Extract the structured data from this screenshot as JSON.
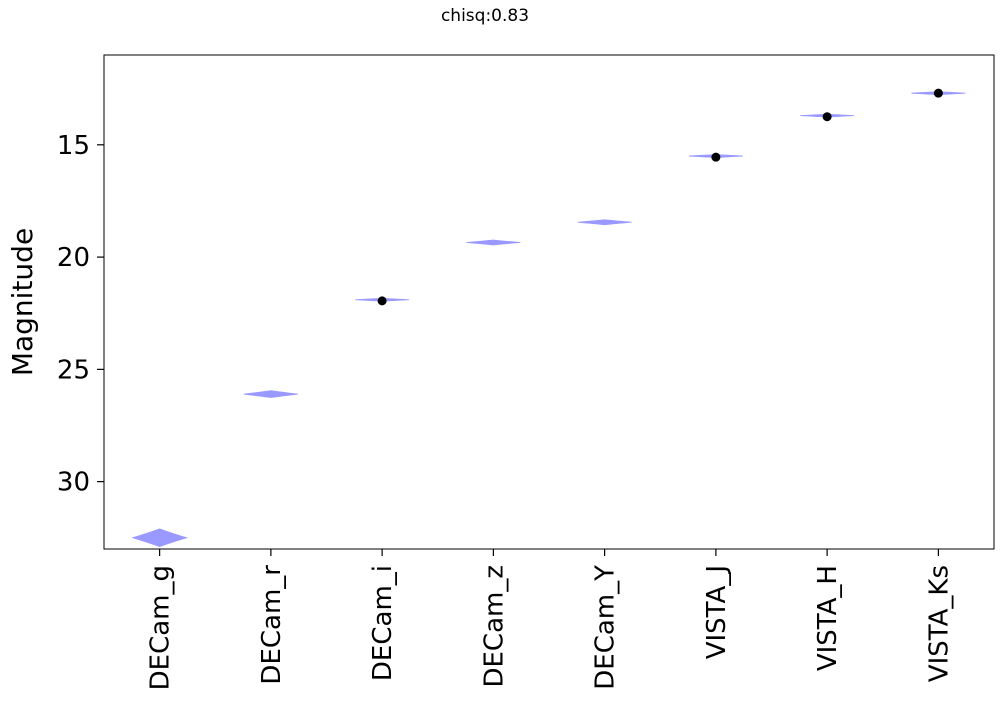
{
  "chart_data": {
    "type": "violin",
    "title": "chisq:0.83",
    "xlabel": "",
    "ylabel": "Magnitude",
    "y_inverted": true,
    "ylim": [
      33.0,
      11.0
    ],
    "yticks": [
      15,
      20,
      25,
      30
    ],
    "grid": false,
    "categories": [
      "DECam_g",
      "DECam_r",
      "DECam_i",
      "DECam_z",
      "DECam_Y",
      "VISTA_J",
      "VISTA_H",
      "VISTA_Ks"
    ],
    "violin_color": "#9999ff",
    "violins": [
      {
        "category": "DECam_g",
        "center": 32.5,
        "spread": 0.18
      },
      {
        "category": "DECam_r",
        "center": 26.1,
        "spread": 0.07
      },
      {
        "category": "DECam_i",
        "center": 21.9,
        "spread": 0.03
      },
      {
        "category": "DECam_z",
        "center": 19.35,
        "spread": 0.05
      },
      {
        "category": "DECam_Y",
        "center": 18.45,
        "spread": 0.05
      },
      {
        "category": "VISTA_J",
        "center": 15.5,
        "spread": 0.03
      },
      {
        "category": "VISTA_H",
        "center": 13.7,
        "spread": 0.03
      },
      {
        "category": "VISTA_Ks",
        "center": 12.7,
        "spread": 0.03
      }
    ],
    "observed_points": [
      {
        "category": "DECam_i",
        "y": 21.95
      },
      {
        "category": "VISTA_J",
        "y": 15.55
      },
      {
        "category": "VISTA_H",
        "y": 13.75
      },
      {
        "category": "VISTA_Ks",
        "y": 12.7
      }
    ],
    "point_color": "#000000"
  }
}
